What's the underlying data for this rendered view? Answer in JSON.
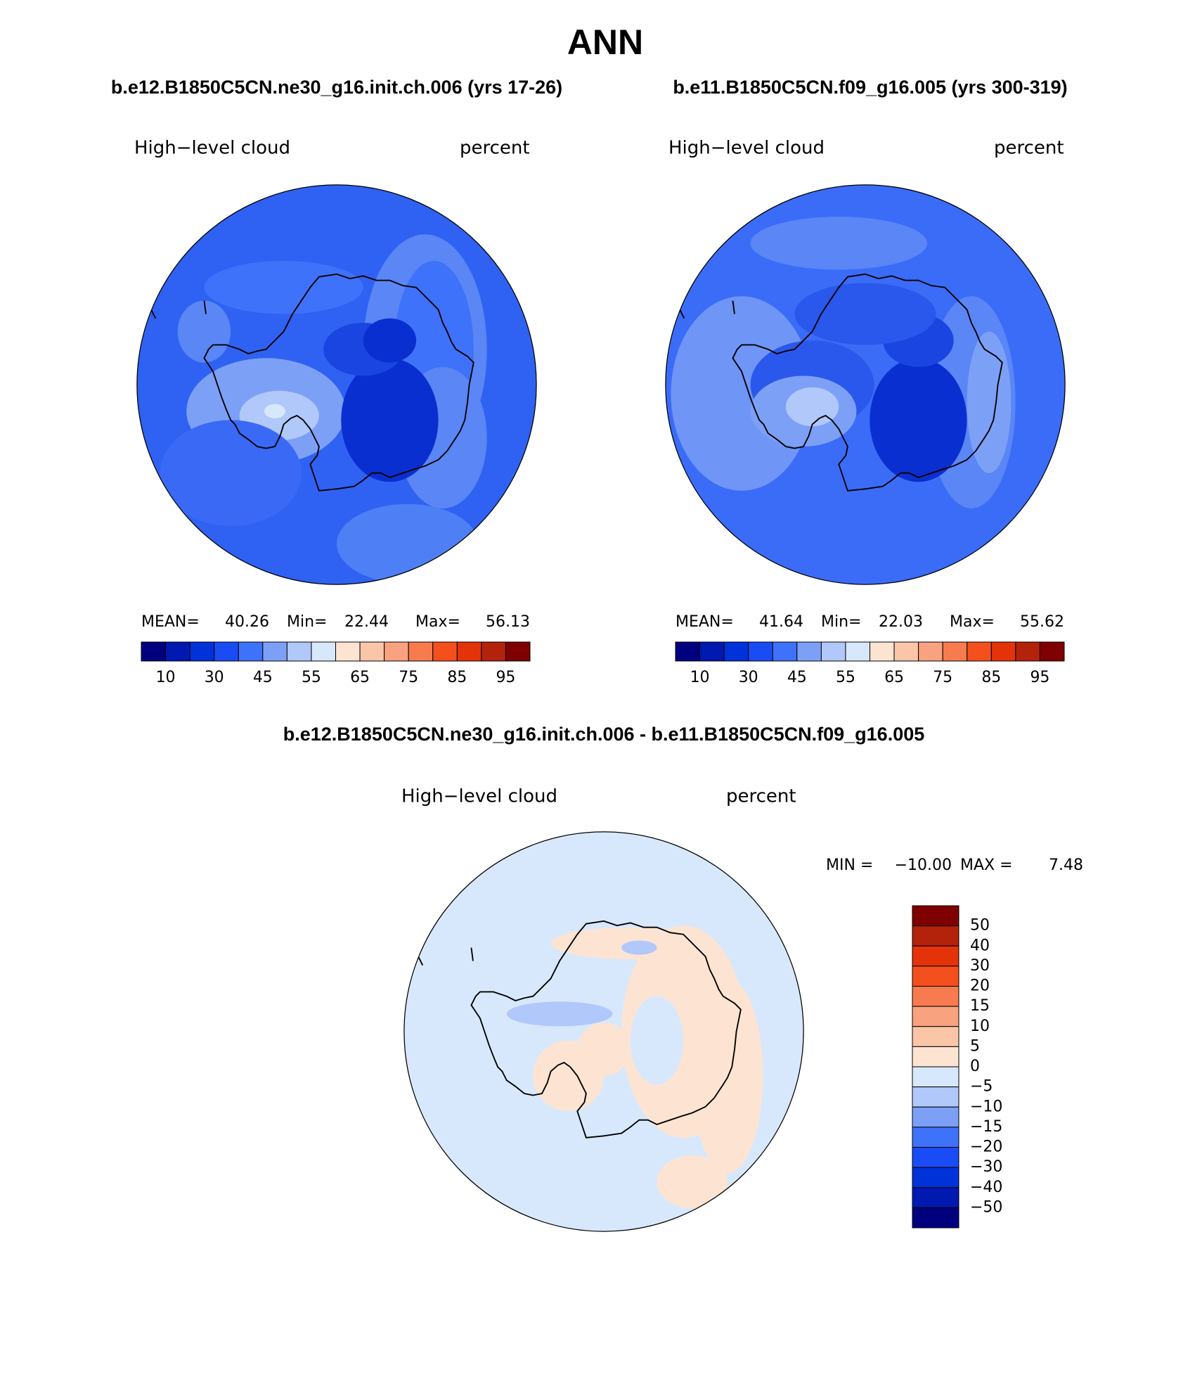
{
  "title": "ANN",
  "panels": [
    {
      "subtitle": "b.e12.B1850C5CN.ne30_g16.init.ch.006 (yrs 17-26)",
      "variable": "High−level cloud",
      "units": "percent",
      "stats": [
        {
          "label": "MEAN=",
          "value": 40.26
        },
        {
          "label": "Min=",
          "value": 22.44
        },
        {
          "label": "Max=",
          "value": 56.13
        }
      ],
      "colorbar": {
        "labels": [
          10,
          30,
          45,
          55,
          65,
          75,
          85,
          95
        ]
      }
    },
    {
      "subtitle": "b.e11.B1850C5CN.f09_g16.005 (yrs 300-319)",
      "variable": "High−level cloud",
      "units": "percent",
      "stats": [
        {
          "label": "MEAN=",
          "value": 41.64
        },
        {
          "label": "Min=",
          "value": 22.03
        },
        {
          "label": "Max=",
          "value": 55.62
        }
      ],
      "colorbar": {
        "labels": [
          10,
          30,
          45,
          55,
          65,
          75,
          85,
          95
        ]
      }
    }
  ],
  "difference": {
    "subtitle": "b.e12.B1850C5CN.ne30_g16.init.ch.006 - b.e11.B1850C5CN.f09_g16.005",
    "variable": "High−level cloud",
    "units": "percent",
    "min_label": "MIN =",
    "min_value": "−10.00",
    "max_label": "MAX =",
    "max_value": 7.48,
    "colorbar": {
      "labels": [
        "50",
        "40",
        "30",
        "20",
        "15",
        "10",
        "5",
        "0",
        "−5",
        "−10",
        "−15",
        "−20",
        "−30",
        "−40",
        "−50"
      ]
    }
  },
  "palette": [
    "#00007f",
    "#0019b0",
    "#0032d9",
    "#1a4cf5",
    "#3f72fa",
    "#7da0f7",
    "#b0c8fa",
    "#d8e8fc",
    "#fde4d2",
    "#fbc5a8",
    "#f9a27f",
    "#f77b4e",
    "#f4501e",
    "#e43309",
    "#b3220a",
    "#7f0000"
  ]
}
